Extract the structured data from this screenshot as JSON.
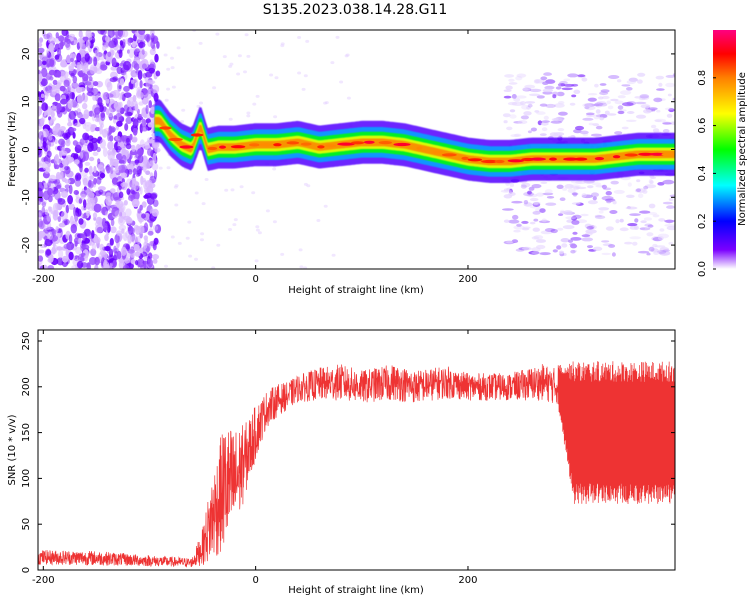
{
  "title": "S135.2023.038.14.28.G11",
  "chart_data": [
    {
      "type": "heatmap",
      "xlabel": "Height of straight line (km)",
      "ylabel": "Frequency (Hz)",
      "xlim": [
        -205,
        395
      ],
      "ylim": [
        -25,
        25
      ],
      "xticks": [
        -200,
        0,
        200
      ],
      "yticks": [
        20,
        10,
        0,
        -10,
        -20
      ],
      "colorbar": {
        "label": "Normalized spectral amplitude",
        "range": [
          0,
          1
        ],
        "ticks": [
          "0.0",
          "0.2",
          "0.4",
          "0.6",
          "0.8"
        ],
        "colors": [
          "#ffffff",
          "#7b00ff",
          "#0000ff",
          "#00ffff",
          "#00ff00",
          "#ffff00",
          "#ff8000",
          "#ff0000",
          "#ff0080"
        ]
      },
      "ridge": {
        "x": [
          -90,
          -80,
          -70,
          -60,
          -52,
          -45,
          -35,
          -20,
          0,
          20,
          40,
          60,
          80,
          100,
          120,
          140,
          160,
          180,
          200,
          220,
          240,
          260,
          280,
          300,
          320,
          340,
          360,
          380,
          395
        ],
        "freq": [
          6,
          3,
          1,
          0,
          5,
          0,
          0.5,
          0.5,
          1,
          1,
          1.5,
          0.5,
          1,
          1.5,
          1.5,
          1,
          0,
          -1,
          -2,
          -2.5,
          -2.5,
          -2,
          -2,
          -2,
          -2,
          -1.5,
          -1,
          -1,
          -1
        ]
      }
    },
    {
      "type": "line",
      "xlabel": "Height of straight line (km)",
      "ylabel": "SNR (10 * v/v)",
      "xlim": [
        -205,
        395
      ],
      "ylim": [
        0,
        262
      ],
      "xticks": [
        -200,
        0,
        200
      ],
      "yticks": [
        0,
        50,
        100,
        150,
        200,
        250
      ],
      "color": "#ee3333",
      "series": [
        {
          "x": [
            -205,
            -150,
            -100,
            -60,
            -50,
            -40,
            -30,
            -20,
            -10,
            0,
            10,
            20,
            30,
            40,
            60,
            80,
            100,
            130,
            150,
            180,
            200,
            240,
            270,
            285,
            300,
            350,
            395
          ],
          "mean": [
            14,
            13,
            10,
            8,
            25,
            60,
            90,
            95,
            120,
            150,
            175,
            185,
            190,
            198,
            203,
            205,
            200,
            205,
            200,
            205,
            200,
            200,
            205,
            200,
            150,
            150,
            150
          ],
          "spread": [
            8,
            8,
            6,
            5,
            20,
            50,
            70,
            60,
            40,
            30,
            20,
            18,
            15,
            15,
            18,
            20,
            18,
            20,
            18,
            18,
            15,
            15,
            20,
            20,
            65,
            65,
            65
          ]
        }
      ]
    }
  ]
}
